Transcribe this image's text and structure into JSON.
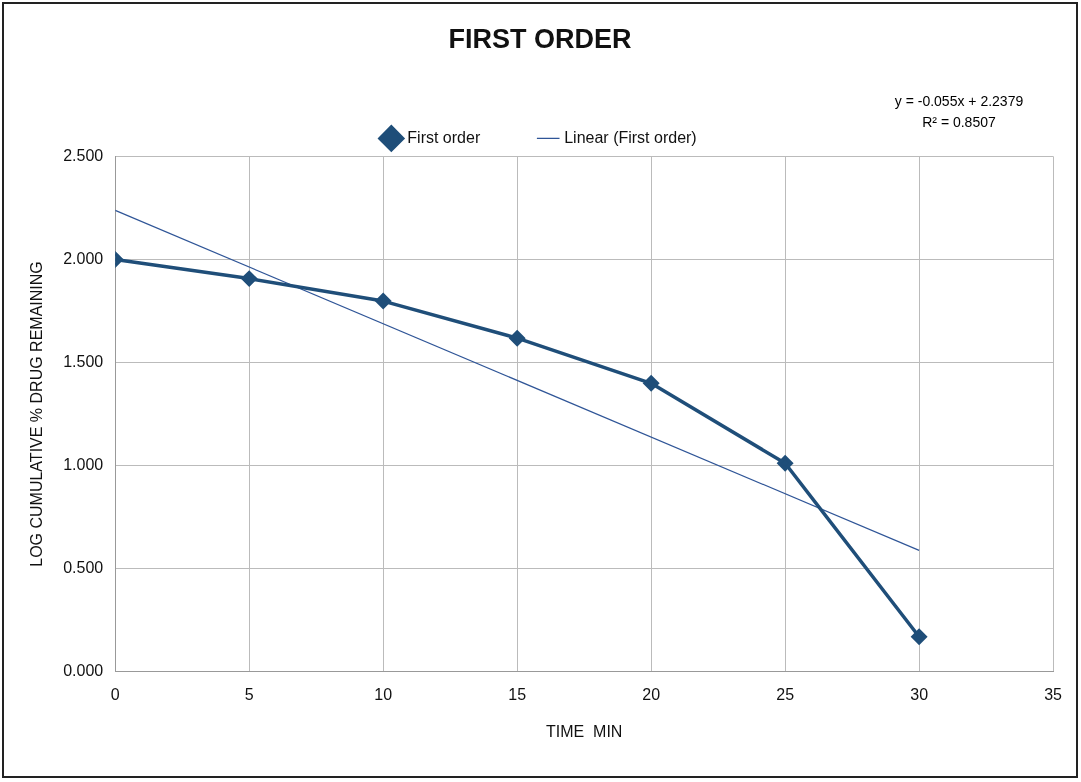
{
  "chart_data": {
    "type": "line",
    "title": "FIRST ORDER",
    "xlabel": "TIME  MIN",
    "ylabel": "LOG CUMULATIVE % DRUG REMAINING",
    "annotations": [
      "y = -0.055x + 2.2379",
      "R² = 0.8507"
    ],
    "series": [
      {
        "name": "First order",
        "color": "#1f4e79",
        "x": [
          0,
          5,
          10,
          15,
          20,
          25,
          30
        ],
        "values": [
          2.0,
          1.907,
          1.798,
          1.618,
          1.399,
          1.011,
          0.169
        ]
      },
      {
        "name": "Linear (First order)",
        "color": "#2f5597",
        "type": "line",
        "marker": "none",
        "x": [
          0,
          30
        ],
        "values": [
          2.238,
          0.588
        ]
      }
    ],
    "xlim": [
      0,
      35
    ],
    "xticks": [
      0,
      5,
      10,
      15,
      20,
      25,
      30,
      35
    ],
    "ylim": [
      0,
      2.5
    ],
    "yticks": [
      {
        "value": 0,
        "label": "0.000"
      },
      {
        "value": 0.5,
        "label": "0.500"
      },
      {
        "value": 1,
        "label": "1.000"
      },
      {
        "value": 1.5,
        "label": "1.500"
      },
      {
        "value": 2,
        "label": "2.000"
      },
      {
        "value": 2.5,
        "label": "2.500"
      }
    ],
    "grid": true,
    "legend": "top",
    "marker": "diamond",
    "line_style": "solid"
  }
}
